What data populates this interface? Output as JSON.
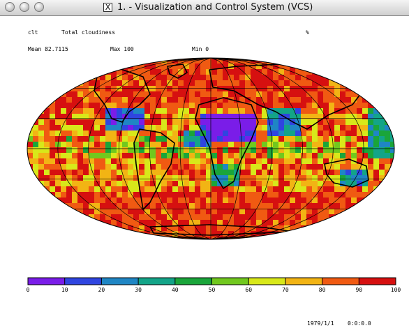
{
  "window": {
    "title": "1. - Visualization and Control System (VCS)",
    "x_icon": "X",
    "buttons": [
      "close-button",
      "minimize-button",
      "zoom-button"
    ]
  },
  "plot": {
    "variable": "clt",
    "long_name": "Total cloudiness",
    "units": "%",
    "mean_label": "Mean 82.7115",
    "max_label": "Max 100",
    "min_label": "Min 0",
    "date": "1979/1/1",
    "time": "0:0:0.0",
    "projection": "robinson"
  },
  "colorbar": {
    "ticks": [
      "0",
      "10",
      "20",
      "30",
      "40",
      "50",
      "60",
      "70",
      "80",
      "90",
      "100"
    ],
    "colors": [
      "#7a1de8",
      "#2f45e0",
      "#1f86c4",
      "#13a488",
      "#1aa53a",
      "#71c81e",
      "#d8e81a",
      "#f2b414",
      "#f05a12",
      "#d61010"
    ]
  }
}
